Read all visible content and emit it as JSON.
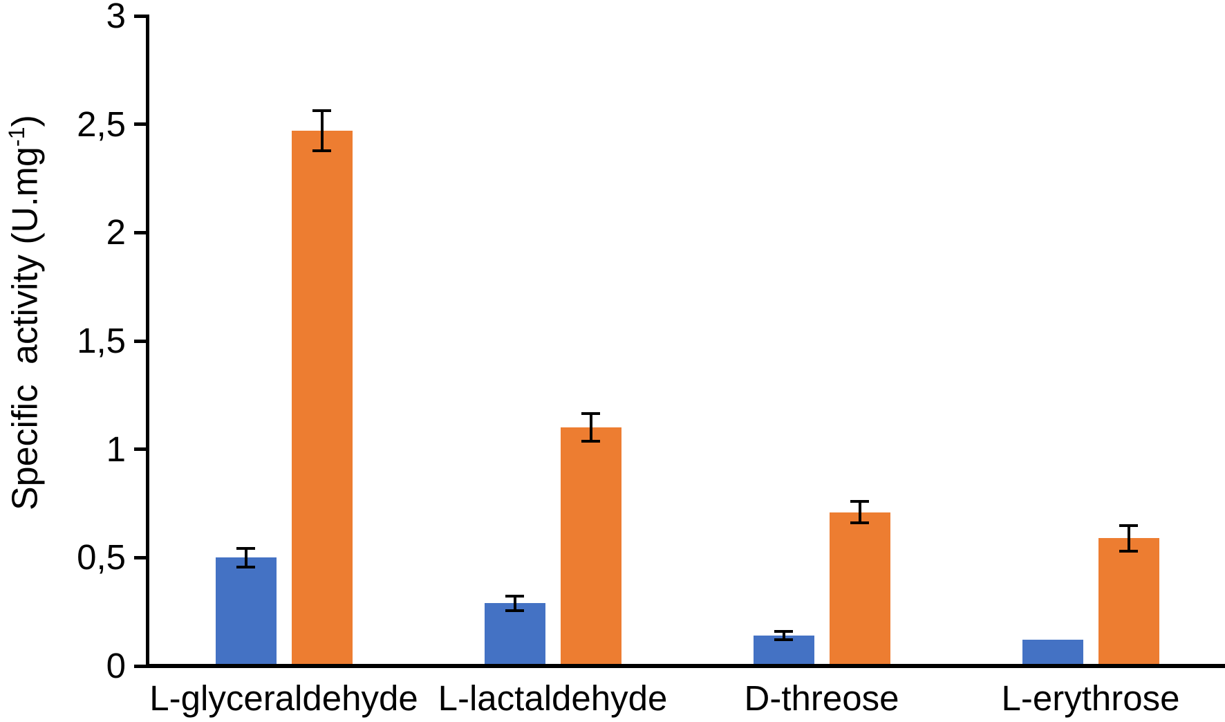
{
  "chart_data": {
    "type": "bar",
    "title": "",
    "categories": [
      "L-glyceraldehyde",
      "L-lactaldehyde",
      "D-threose",
      "L-erythrose"
    ],
    "series": [
      {
        "name": "blue",
        "color": "#4472C4",
        "values": [
          0.5,
          0.29,
          0.14,
          0.12
        ],
        "errors": [
          0.05,
          0.04,
          0.025,
          0
        ]
      },
      {
        "name": "orange",
        "color": "#ED7D31",
        "values": [
          2.47,
          1.1,
          0.71,
          0.59
        ],
        "errors": [
          0.1,
          0.07,
          0.055,
          0.065
        ]
      }
    ],
    "xlabel": "",
    "ylabel": "Specific activity (U.mg-1)",
    "ylabel_parts": {
      "prefix": "Specific  activity (U.mg",
      "superscript": "-1",
      "suffix": ")"
    },
    "ylim": [
      0,
      3
    ],
    "yticks": {
      "values": [
        0,
        0.5,
        1,
        1.5,
        2,
        2.5,
        3
      ],
      "labels": [
        "0",
        "0,5",
        "1",
        "1,5",
        "2",
        "2,5",
        "3"
      ]
    },
    "grid": false,
    "legend": "none",
    "error_bar_color": "#000000",
    "axis_color": "#000000"
  }
}
